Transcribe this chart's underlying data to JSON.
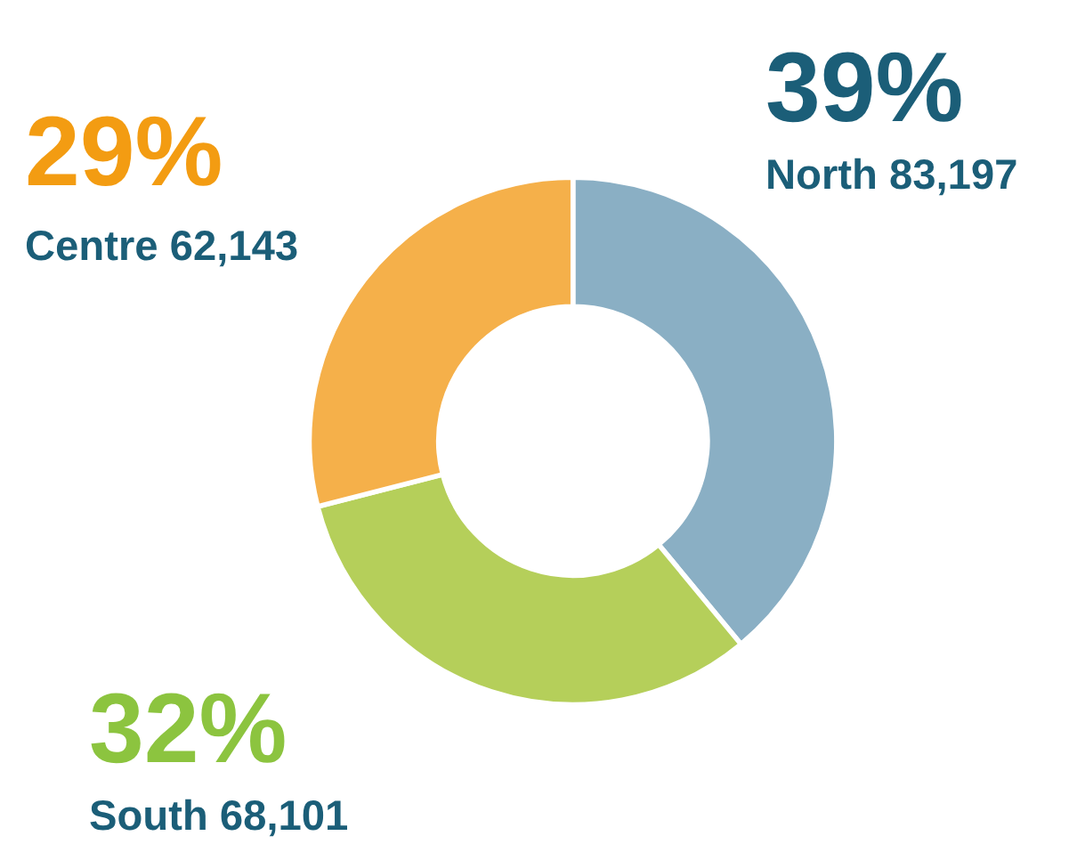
{
  "chart_data": {
    "type": "donut",
    "categories": [
      "North 83,197",
      "South 68,101",
      "Centre 62,143"
    ],
    "values": [
      39,
      32,
      29
    ],
    "value_labels": [
      "39%",
      "32%",
      "29%"
    ],
    "colors": [
      "#8aafc4",
      "#b5cf5a",
      "#f5b04a"
    ]
  }
}
